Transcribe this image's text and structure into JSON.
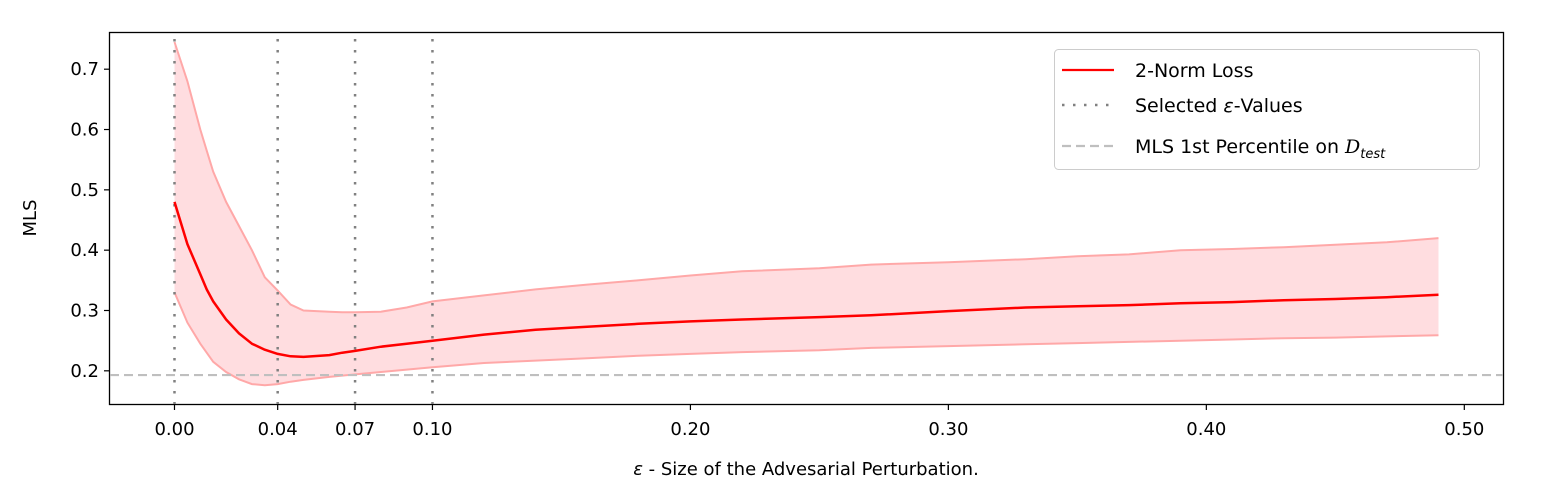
{
  "chart_data": {
    "type": "line",
    "xlabel_var": "ε",
    "xlabel_rest": " - Size of the Advesarial Perturbation.",
    "ylabel": "MLS",
    "xlim": [
      -0.025,
      0.515
    ],
    "ylim": [
      0.145,
      0.76
    ],
    "xticks": [
      0.0,
      0.04,
      0.07,
      0.1,
      0.2,
      0.3,
      0.4,
      0.5
    ],
    "xtick_labels": [
      "0.00",
      "0.04",
      "0.07",
      "0.10",
      "0.20",
      "0.30",
      "0.40",
      "0.50"
    ],
    "yticks": [
      0.2,
      0.3,
      0.4,
      0.5,
      0.6,
      0.7
    ],
    "ytick_labels": [
      "0.2",
      "0.3",
      "0.4",
      "0.5",
      "0.6",
      "0.7"
    ],
    "selected_eps": [
      0.0,
      0.04,
      0.07,
      0.1
    ],
    "percentile_line": 0.193,
    "series": [
      {
        "name": "2-Norm Loss",
        "color": "#ff0000",
        "x": [
          0.0,
          0.005,
          0.01,
          0.0125,
          0.015,
          0.02,
          0.025,
          0.03,
          0.035,
          0.04,
          0.045,
          0.05,
          0.06,
          0.065,
          0.07,
          0.08,
          0.09,
          0.1,
          0.12,
          0.14,
          0.16,
          0.18,
          0.2,
          0.22,
          0.25,
          0.27,
          0.3,
          0.33,
          0.35,
          0.37,
          0.39,
          0.41,
          0.43,
          0.45,
          0.47,
          0.49
        ],
        "y": [
          0.48,
          0.41,
          0.36,
          0.335,
          0.315,
          0.285,
          0.262,
          0.245,
          0.235,
          0.228,
          0.224,
          0.223,
          0.226,
          0.23,
          0.233,
          0.24,
          0.245,
          0.25,
          0.26,
          0.268,
          0.273,
          0.278,
          0.282,
          0.285,
          0.289,
          0.292,
          0.299,
          0.305,
          0.307,
          0.309,
          0.312,
          0.314,
          0.317,
          0.319,
          0.322,
          0.326
        ],
        "lower": [
          0.33,
          0.28,
          0.245,
          0.23,
          0.215,
          0.198,
          0.186,
          0.178,
          0.176,
          0.178,
          0.182,
          0.185,
          0.19,
          0.192,
          0.194,
          0.198,
          0.202,
          0.206,
          0.213,
          0.217,
          0.221,
          0.225,
          0.228,
          0.231,
          0.234,
          0.238,
          0.241,
          0.244,
          0.246,
          0.248,
          0.25,
          0.252,
          0.254,
          0.255,
          0.257,
          0.259
        ],
        "upper": [
          0.745,
          0.68,
          0.6,
          0.565,
          0.53,
          0.48,
          0.44,
          0.4,
          0.355,
          0.333,
          0.31,
          0.3,
          0.298,
          0.297,
          0.297,
          0.298,
          0.305,
          0.315,
          0.325,
          0.335,
          0.343,
          0.35,
          0.358,
          0.365,
          0.37,
          0.376,
          0.38,
          0.385,
          0.39,
          0.393,
          0.4,
          0.402,
          0.405,
          0.409,
          0.413,
          0.42
        ]
      }
    ],
    "legend": {
      "position": "top-right",
      "entries": [
        {
          "label": "2-Norm Loss",
          "style": "solid-red"
        },
        {
          "label_pre": "Selected ",
          "label_var": "ε",
          "label_post": "-Values",
          "style": "dotted-gray"
        },
        {
          "label_pre": "MLS 1st Percentile on ",
          "label_var": "D",
          "label_sub": "test",
          "style": "dashed-lightgray"
        }
      ]
    },
    "colors": {
      "line": "#ff0000",
      "band_fill": "#ffdde0",
      "band_edge": "#ffa8a8",
      "selected_line": "#808080",
      "percentile_line": "#bfbfbf"
    },
    "grid": false
  }
}
